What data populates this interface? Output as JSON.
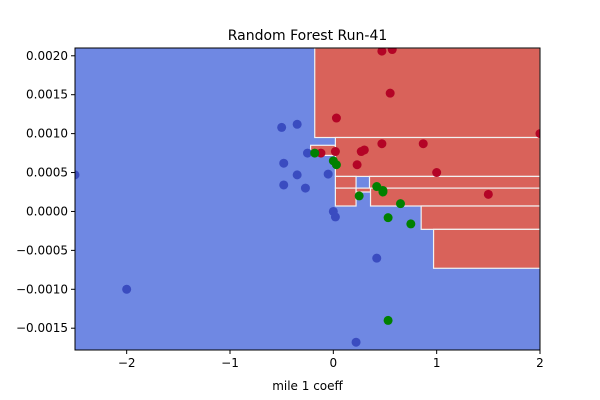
{
  "chart_data": {
    "type": "scatter",
    "title": "Random Forest Run-41",
    "xlabel": "mile 1 coeff",
    "ylabel": "",
    "xlim": [
      -2.5,
      2.0
    ],
    "ylim": [
      -0.00178,
      0.0021
    ],
    "x_ticks": [
      -2,
      -1,
      0,
      1,
      2
    ],
    "x_tick_labels": [
      "−2",
      "−1",
      "0",
      "1",
      "2"
    ],
    "y_ticks": [
      -0.0015,
      -0.001,
      -0.0005,
      0.0,
      0.0005,
      0.001,
      0.0015,
      0.002
    ],
    "y_tick_labels": [
      "−0.0015",
      "−0.0010",
      "−0.0005",
      "0.0000",
      "0.0005",
      "0.0010",
      "0.0015",
      "0.0020"
    ],
    "grid": false,
    "legend": "none",
    "colors": {
      "region_blue": "#6f88e3",
      "region_red": "#d9625a",
      "point_blue": "#3a4cc0",
      "point_red": "#b40426",
      "point_green": "#008000"
    },
    "decision_regions": {
      "background_class": "blue",
      "red_regions": [
        {
          "x": [
            -0.18,
            2.0
          ],
          "y": [
            0.00095,
            0.0021
          ]
        },
        {
          "x": [
            -0.22,
            0.02
          ],
          "y": [
            0.00072,
            0.00085
          ]
        },
        {
          "x": [
            0.02,
            2.0
          ],
          "y": [
            0.00045,
            0.00095
          ]
        },
        {
          "x": [
            0.02,
            0.22
          ],
          "y": [
            0.0003,
            0.00045
          ]
        },
        {
          "x": [
            0.35,
            2.0
          ],
          "y": [
            0.0003,
            0.00045
          ]
        },
        {
          "x": [
            0.02,
            0.22
          ],
          "y": [
            7e-05,
            0.0003
          ]
        },
        {
          "x": [
            0.22,
            0.36
          ],
          "y": [
            0.00025,
            0.0003
          ]
        },
        {
          "x": [
            0.36,
            2.0
          ],
          "y": [
            7e-05,
            0.0003
          ]
        },
        {
          "x": [
            0.85,
            2.0
          ],
          "y": [
            -0.00023,
            7e-05
          ]
        },
        {
          "x": [
            0.97,
            2.0
          ],
          "y": [
            -0.00073,
            -0.00023
          ]
        }
      ]
    },
    "series": [
      {
        "class": "blue",
        "x": [
          -2.5,
          -2.0,
          -0.5,
          -0.35,
          -0.48,
          -0.35,
          -0.25,
          -0.48,
          -0.27,
          -0.05,
          0.0,
          0.02,
          0.42,
          0.22
        ],
        "y": [
          0.00047,
          -0.001,
          0.00108,
          0.00112,
          0.00062,
          0.00047,
          0.00075,
          0.00034,
          0.0003,
          0.00048,
          0.0,
          -7e-05,
          -0.0006,
          -0.00168
        ]
      },
      {
        "class": "red",
        "x": [
          0.47,
          0.57,
          0.55,
          0.03,
          0.02,
          -0.12,
          0.27,
          0.3,
          0.23,
          0.47,
          0.87,
          1.0,
          1.5,
          2.0
        ],
        "y": [
          0.00206,
          0.00208,
          0.00152,
          0.0012,
          0.00077,
          0.00075,
          0.00077,
          0.00079,
          0.0006,
          0.00087,
          0.00087,
          0.0005,
          0.00022,
          0.001
        ]
      },
      {
        "class": "green",
        "x": [
          -0.18,
          0.0,
          0.03,
          0.42,
          0.48,
          0.48,
          0.25,
          0.65,
          0.53,
          0.75,
          0.53
        ],
        "y": [
          0.00075,
          0.00065,
          0.0006,
          0.00032,
          0.00027,
          0.00025,
          0.0002,
          0.0001,
          -8e-05,
          -0.00016,
          -0.0014
        ]
      }
    ]
  }
}
